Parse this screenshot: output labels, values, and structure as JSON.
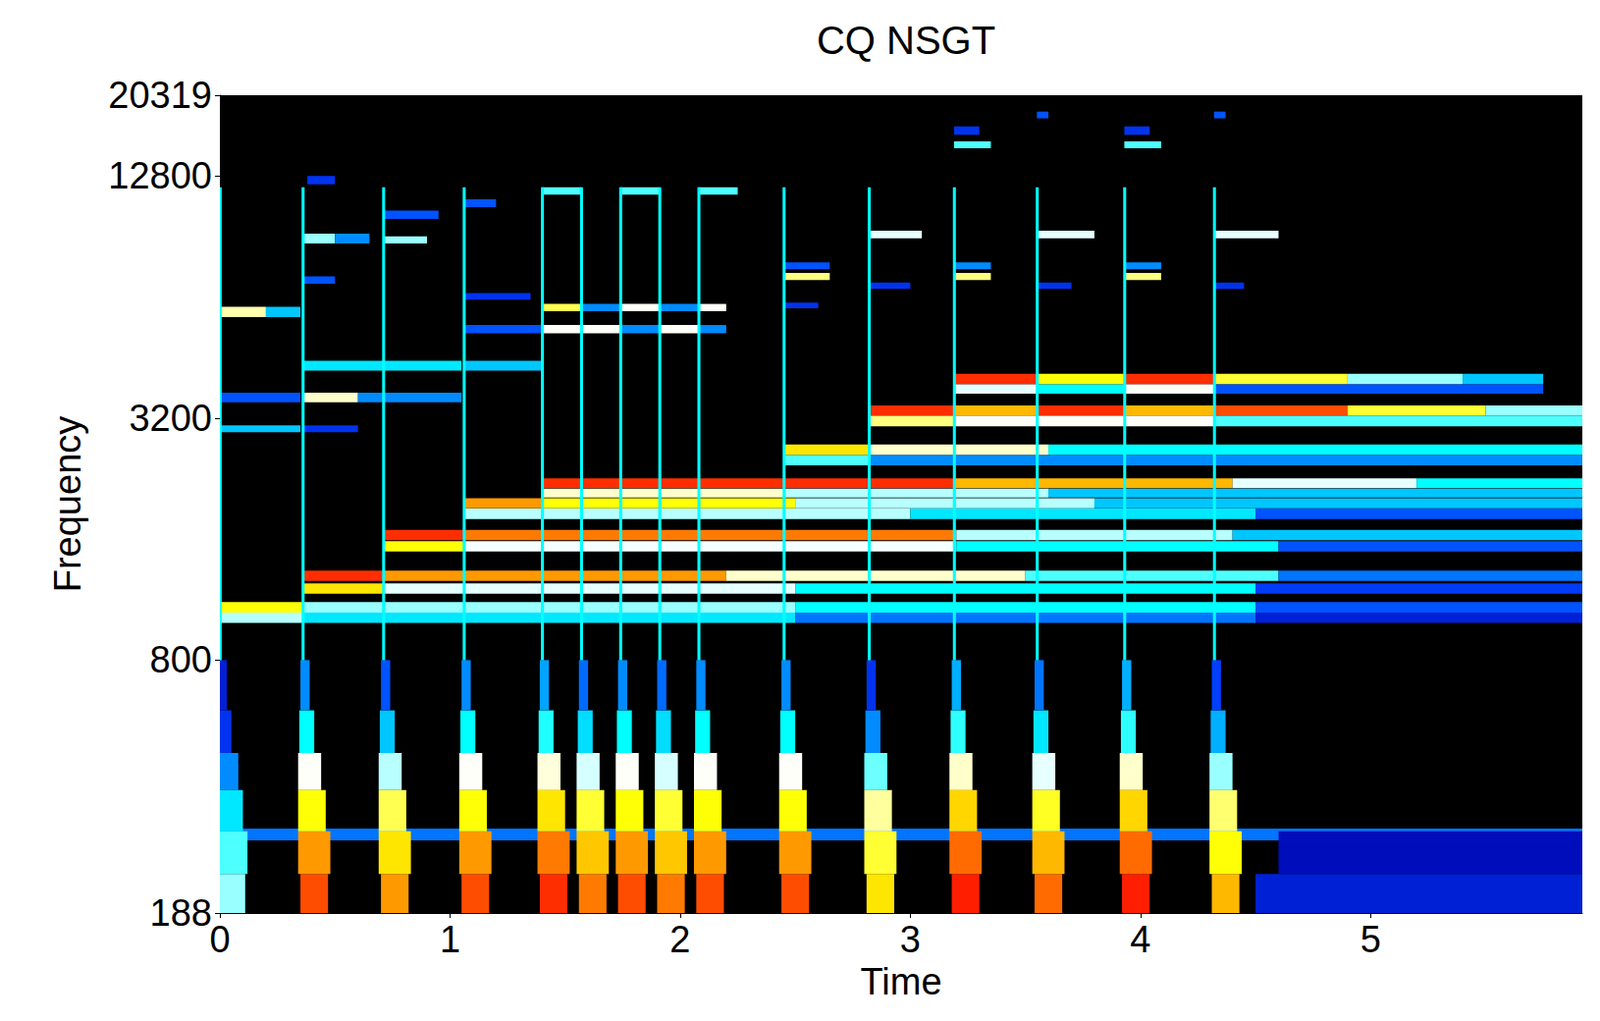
{
  "chart_data": {
    "type": "heatmap",
    "title": "CQ NSGT",
    "x_label": "Time",
    "y_label": "Frequency",
    "xlim": [
      0,
      5.92
    ],
    "ylim": [
      188,
      20319
    ],
    "xticks": [
      0,
      1,
      2,
      3,
      4,
      5
    ],
    "yticks": [
      188,
      800,
      3200,
      12800,
      20319
    ],
    "log": "y",
    "grid": false,
    "zlim": [
      0,
      100
    ],
    "cells": [
      [
        0,
        5.92,
        285,
        305,
        38
      ],
      [
        4.5,
        5.92,
        188,
        235,
        25
      ],
      [
        4.6,
        5.92,
        235,
        300,
        20
      ],
      [
        0,
        0.36,
        1050,
        1115,
        83
      ],
      [
        0.36,
        2.5,
        1050,
        1115,
        60
      ],
      [
        2.5,
        4.5,
        1050,
        1115,
        50
      ],
      [
        4.5,
        5.92,
        1050,
        1115,
        35
      ],
      [
        0,
        0.36,
        990,
        1050,
        62
      ],
      [
        0.36,
        2.5,
        990,
        1050,
        48
      ],
      [
        2.5,
        4.5,
        990,
        1050,
        38
      ],
      [
        4.5,
        5.92,
        990,
        1050,
        25
      ],
      [
        0.36,
        0.71,
        1258,
        1335,
        97
      ],
      [
        0.71,
        2.2,
        1258,
        1335,
        90
      ],
      [
        2.2,
        3.5,
        1258,
        1335,
        70
      ],
      [
        3.5,
        4.6,
        1258,
        1335,
        55
      ],
      [
        4.6,
        5.92,
        1258,
        1335,
        38
      ],
      [
        0.36,
        0.71,
        1170,
        1242,
        85
      ],
      [
        0.71,
        2.5,
        1170,
        1242,
        65
      ],
      [
        2.5,
        4.5,
        1170,
        1242,
        50
      ],
      [
        4.5,
        5.92,
        1170,
        1242,
        32
      ],
      [
        0.71,
        1.06,
        1590,
        1687,
        97
      ],
      [
        1.06,
        3.2,
        1590,
        1687,
        92
      ],
      [
        3.2,
        4.4,
        1590,
        1687,
        62
      ],
      [
        4.4,
        5.92,
        1590,
        1687,
        45
      ],
      [
        0.71,
        1.06,
        1490,
        1580,
        83
      ],
      [
        1.06,
        3.2,
        1490,
        1580,
        66
      ],
      [
        3.2,
        4.6,
        1490,
        1580,
        50
      ],
      [
        4.6,
        5.92,
        1490,
        1580,
        35
      ],
      [
        1.06,
        1.4,
        1907,
        2022,
        90
      ],
      [
        1.4,
        2.5,
        1907,
        2022,
        83
      ],
      [
        2.5,
        3.8,
        1907,
        2022,
        62
      ],
      [
        3.8,
        5.92,
        1907,
        2022,
        45
      ],
      [
        1.06,
        1.4,
        1795,
        1905,
        62
      ],
      [
        1.4,
        3.0,
        1795,
        1905,
        62
      ],
      [
        3.0,
        4.5,
        1795,
        1905,
        48
      ],
      [
        4.5,
        5.92,
        1795,
        1905,
        35
      ],
      [
        1.4,
        3.19,
        2140,
        2265,
        97
      ],
      [
        3.19,
        4.4,
        2140,
        2265,
        88
      ],
      [
        4.4,
        5.2,
        2140,
        2265,
        65
      ],
      [
        5.2,
        5.92,
        2140,
        2265,
        50
      ],
      [
        1.4,
        2.45,
        2030,
        2135,
        70
      ],
      [
        2.45,
        3.6,
        2030,
        2135,
        62
      ],
      [
        3.6,
        5.92,
        2030,
        2135,
        45
      ],
      [
        2.45,
        2.82,
        2590,
        2750,
        85
      ],
      [
        2.82,
        3.6,
        2590,
        2750,
        70
      ],
      [
        3.6,
        5.92,
        2590,
        2750,
        50
      ],
      [
        2.45,
        2.82,
        2440,
        2590,
        55
      ],
      [
        2.82,
        5.92,
        2440,
        2590,
        40
      ],
      [
        2.82,
        3.19,
        3240,
        3440,
        97
      ],
      [
        3.19,
        3.55,
        3240,
        3440,
        88
      ],
      [
        3.55,
        3.93,
        3240,
        3440,
        97
      ],
      [
        3.93,
        4.32,
        3240,
        3440,
        88
      ],
      [
        4.32,
        4.9,
        3240,
        3440,
        95
      ],
      [
        4.9,
        5.5,
        3240,
        3440,
        80
      ],
      [
        5.5,
        5.92,
        3240,
        3440,
        60
      ],
      [
        2.82,
        3.19,
        3050,
        3240,
        75
      ],
      [
        3.19,
        4.32,
        3050,
        3240,
        67
      ],
      [
        4.32,
        5.92,
        3050,
        3240,
        55
      ],
      [
        3.19,
        3.55,
        3880,
        4120,
        97
      ],
      [
        3.55,
        3.93,
        3880,
        4120,
        83
      ],
      [
        3.93,
        4.32,
        3880,
        4120,
        97
      ],
      [
        4.32,
        4.9,
        3880,
        4120,
        80
      ],
      [
        4.9,
        5.4,
        3880,
        4120,
        60
      ],
      [
        5.4,
        5.75,
        3880,
        4120,
        45
      ],
      [
        3.19,
        3.55,
        3680,
        3880,
        65
      ],
      [
        3.55,
        3.93,
        3680,
        3880,
        50
      ],
      [
        3.93,
        4.32,
        3680,
        3880,
        67
      ],
      [
        4.32,
        5.75,
        3680,
        3880,
        35
      ],
      [
        0,
        0.2,
        5700,
        6050,
        72
      ],
      [
        0.2,
        0.35,
        5700,
        6050,
        45
      ],
      [
        0,
        0.35,
        3500,
        3700,
        35
      ],
      [
        0,
        0.35,
        2950,
        3070,
        45
      ],
      [
        0.36,
        0.5,
        8700,
        9200,
        60
      ],
      [
        0.5,
        0.65,
        8700,
        9200,
        40
      ],
      [
        0.38,
        0.5,
        12200,
        12800,
        30
      ],
      [
        0.36,
        0.5,
        6900,
        7200,
        35
      ],
      [
        0.36,
        1.05,
        4200,
        4440,
        48
      ],
      [
        0.36,
        0.6,
        3500,
        3700,
        70
      ],
      [
        0.6,
        1.05,
        3500,
        3700,
        40
      ],
      [
        0.36,
        0.6,
        2950,
        3070,
        30
      ],
      [
        0.71,
        0.95,
        10000,
        10500,
        35
      ],
      [
        0.71,
        0.9,
        8700,
        9050,
        60
      ],
      [
        1.06,
        1.2,
        10700,
        11200,
        35
      ],
      [
        1.06,
        1.35,
        6300,
        6550,
        30
      ],
      [
        1.06,
        1.4,
        5200,
        5450,
        35
      ],
      [
        1.06,
        1.4,
        4200,
        4440,
        45
      ],
      [
        1.4,
        1.57,
        11500,
        12000,
        55
      ],
      [
        1.4,
        1.57,
        5900,
        6150,
        78
      ],
      [
        1.4,
        1.57,
        5200,
        5450,
        67
      ],
      [
        1.57,
        1.74,
        5200,
        5450,
        67
      ],
      [
        1.57,
        1.74,
        5900,
        6150,
        40
      ],
      [
        1.74,
        1.91,
        11500,
        12000,
        55
      ],
      [
        1.74,
        1.91,
        5900,
        6150,
        67
      ],
      [
        1.74,
        1.91,
        5200,
        5450,
        40
      ],
      [
        1.91,
        2.08,
        5200,
        5450,
        67
      ],
      [
        1.91,
        2.08,
        5900,
        6150,
        40
      ],
      [
        2.08,
        2.25,
        11500,
        12000,
        55
      ],
      [
        2.08,
        2.2,
        5900,
        6150,
        67
      ],
      [
        2.08,
        2.2,
        5200,
        5450,
        40
      ],
      [
        2.45,
        2.65,
        7500,
        7800,
        35
      ],
      [
        2.45,
        2.65,
        7050,
        7350,
        75
      ],
      [
        2.45,
        2.6,
        6000,
        6200,
        30
      ],
      [
        2.82,
        3.05,
        8950,
        9350,
        65
      ],
      [
        2.82,
        3.0,
        6700,
        6950,
        30
      ],
      [
        3.19,
        3.3,
        16200,
        17000,
        30
      ],
      [
        3.19,
        3.35,
        15000,
        15600,
        55
      ],
      [
        3.19,
        3.35,
        7500,
        7800,
        40
      ],
      [
        3.19,
        3.35,
        7050,
        7350,
        75
      ],
      [
        3.55,
        3.6,
        17800,
        18500,
        35
      ],
      [
        3.55,
        3.8,
        8950,
        9350,
        65
      ],
      [
        3.55,
        3.7,
        6700,
        6950,
        30
      ],
      [
        3.93,
        4.04,
        16200,
        17000,
        30
      ],
      [
        3.93,
        4.09,
        15000,
        15600,
        55
      ],
      [
        3.93,
        4.09,
        7500,
        7800,
        40
      ],
      [
        3.93,
        4.09,
        7050,
        7350,
        75
      ],
      [
        4.32,
        4.37,
        17800,
        18500,
        35
      ],
      [
        4.32,
        4.6,
        8950,
        9350,
        65
      ],
      [
        4.32,
        4.45,
        6700,
        6950,
        30
      ],
      [
        0,
        0.11,
        188,
        235,
        60
      ],
      [
        0,
        0.12,
        235,
        300,
        55
      ],
      [
        0,
        0.1,
        300,
        380,
        48
      ],
      [
        0,
        0.08,
        380,
        470,
        40
      ],
      [
        0,
        0.05,
        470,
        600,
        30
      ],
      [
        0,
        0.03,
        600,
        800,
        25
      ],
      [
        0.35,
        0.47,
        188,
        235,
        95
      ],
      [
        0.34,
        0.48,
        235,
        300,
        90
      ],
      [
        0.34,
        0.46,
        300,
        380,
        83
      ],
      [
        0.34,
        0.44,
        380,
        470,
        67
      ],
      [
        0.345,
        0.41,
        470,
        600,
        50
      ],
      [
        0.35,
        0.39,
        600,
        800,
        40
      ],
      [
        0.7,
        0.82,
        188,
        235,
        90
      ],
      [
        0.69,
        0.83,
        235,
        300,
        85
      ],
      [
        0.69,
        0.81,
        300,
        380,
        78
      ],
      [
        0.69,
        0.79,
        380,
        470,
        62
      ],
      [
        0.695,
        0.76,
        470,
        600,
        45
      ],
      [
        0.7,
        0.74,
        600,
        800,
        35
      ],
      [
        1.05,
        1.17,
        188,
        235,
        95
      ],
      [
        1.04,
        1.18,
        235,
        300,
        90
      ],
      [
        1.04,
        1.16,
        300,
        380,
        83
      ],
      [
        1.04,
        1.14,
        380,
        470,
        67
      ],
      [
        1.045,
        1.11,
        470,
        600,
        50
      ],
      [
        1.05,
        1.09,
        600,
        800,
        40
      ],
      [
        1.39,
        1.51,
        188,
        235,
        97
      ],
      [
        1.38,
        1.52,
        235,
        300,
        92
      ],
      [
        1.38,
        1.5,
        300,
        380,
        85
      ],
      [
        1.38,
        1.48,
        380,
        470,
        69
      ],
      [
        1.385,
        1.45,
        470,
        600,
        52
      ],
      [
        1.39,
        1.43,
        600,
        800,
        42
      ],
      [
        1.56,
        1.68,
        188,
        235,
        92
      ],
      [
        1.55,
        1.69,
        235,
        300,
        87
      ],
      [
        1.55,
        1.67,
        300,
        380,
        80
      ],
      [
        1.55,
        1.65,
        380,
        470,
        64
      ],
      [
        1.555,
        1.62,
        470,
        600,
        47
      ],
      [
        1.56,
        1.6,
        600,
        800,
        37
      ],
      [
        1.73,
        1.85,
        188,
        235,
        95
      ],
      [
        1.72,
        1.86,
        235,
        300,
        90
      ],
      [
        1.72,
        1.84,
        300,
        380,
        83
      ],
      [
        1.72,
        1.82,
        380,
        470,
        67
      ],
      [
        1.725,
        1.79,
        470,
        600,
        50
      ],
      [
        1.73,
        1.77,
        600,
        800,
        40
      ],
      [
        1.9,
        2.02,
        188,
        235,
        92
      ],
      [
        1.89,
        2.03,
        235,
        300,
        87
      ],
      [
        1.89,
        2.01,
        300,
        380,
        80
      ],
      [
        1.89,
        1.99,
        380,
        470,
        64
      ],
      [
        1.895,
        1.96,
        470,
        600,
        47
      ],
      [
        1.9,
        1.94,
        600,
        800,
        37
      ],
      [
        2.07,
        2.19,
        188,
        235,
        95
      ],
      [
        2.06,
        2.2,
        235,
        300,
        90
      ],
      [
        2.06,
        2.18,
        300,
        380,
        83
      ],
      [
        2.06,
        2.16,
        380,
        470,
        67
      ],
      [
        2.065,
        2.13,
        470,
        600,
        50
      ],
      [
        2.07,
        2.11,
        600,
        800,
        40
      ],
      [
        2.44,
        2.56,
        188,
        235,
        95
      ],
      [
        2.43,
        2.57,
        235,
        300,
        90
      ],
      [
        2.43,
        2.55,
        300,
        380,
        83
      ],
      [
        2.43,
        2.53,
        380,
        470,
        67
      ],
      [
        2.435,
        2.5,
        470,
        600,
        50
      ],
      [
        2.44,
        2.48,
        600,
        800,
        40
      ],
      [
        2.81,
        2.93,
        188,
        235,
        85
      ],
      [
        2.8,
        2.94,
        235,
        300,
        80
      ],
      [
        2.8,
        2.92,
        300,
        380,
        73
      ],
      [
        2.8,
        2.9,
        380,
        470,
        57
      ],
      [
        2.805,
        2.87,
        470,
        600,
        40
      ],
      [
        2.81,
        2.85,
        600,
        800,
        30
      ],
      [
        3.18,
        3.3,
        188,
        235,
        98
      ],
      [
        3.17,
        3.31,
        235,
        300,
        93
      ],
      [
        3.17,
        3.29,
        300,
        380,
        86
      ],
      [
        3.17,
        3.27,
        380,
        470,
        70
      ],
      [
        3.175,
        3.24,
        470,
        600,
        53
      ],
      [
        3.18,
        3.22,
        600,
        800,
        43
      ],
      [
        3.54,
        3.66,
        188,
        235,
        93
      ],
      [
        3.53,
        3.67,
        235,
        300,
        88
      ],
      [
        3.53,
        3.65,
        300,
        380,
        81
      ],
      [
        3.53,
        3.63,
        380,
        470,
        65
      ],
      [
        3.535,
        3.6,
        470,
        600,
        48
      ],
      [
        3.54,
        3.58,
        600,
        800,
        38
      ],
      [
        3.92,
        4.04,
        188,
        235,
        98
      ],
      [
        3.91,
        4.05,
        235,
        300,
        93
      ],
      [
        3.91,
        4.03,
        300,
        380,
        86
      ],
      [
        3.91,
        4.01,
        380,
        470,
        70
      ],
      [
        3.915,
        3.98,
        470,
        600,
        53
      ],
      [
        3.92,
        3.96,
        600,
        800,
        43
      ],
      [
        4.31,
        4.43,
        188,
        235,
        88
      ],
      [
        4.3,
        4.44,
        235,
        300,
        83
      ],
      [
        4.3,
        4.42,
        300,
        380,
        76
      ],
      [
        4.3,
        4.4,
        380,
        470,
        60
      ],
      [
        4.305,
        4.37,
        470,
        600,
        43
      ],
      [
        4.31,
        4.35,
        600,
        800,
        33
      ],
      [
        0,
        0.008,
        800,
        12000,
        50
      ],
      [
        0.355,
        0.368,
        800,
        12000,
        50
      ],
      [
        0.705,
        0.718,
        800,
        12000,
        50
      ],
      [
        1.055,
        1.068,
        800,
        12000,
        50
      ],
      [
        1.395,
        1.408,
        800,
        12000,
        50
      ],
      [
        1.565,
        1.578,
        800,
        12000,
        50
      ],
      [
        1.735,
        1.748,
        800,
        12000,
        50
      ],
      [
        1.905,
        1.918,
        800,
        12000,
        50
      ],
      [
        2.075,
        2.088,
        800,
        12000,
        50
      ],
      [
        2.445,
        2.458,
        800,
        12000,
        50
      ],
      [
        2.815,
        2.828,
        800,
        12000,
        50
      ],
      [
        3.185,
        3.198,
        800,
        12000,
        50
      ],
      [
        3.545,
        3.558,
        800,
        12000,
        50
      ],
      [
        3.925,
        3.938,
        800,
        12000,
        50
      ],
      [
        4.315,
        4.328,
        800,
        12000,
        50
      ]
    ]
  }
}
